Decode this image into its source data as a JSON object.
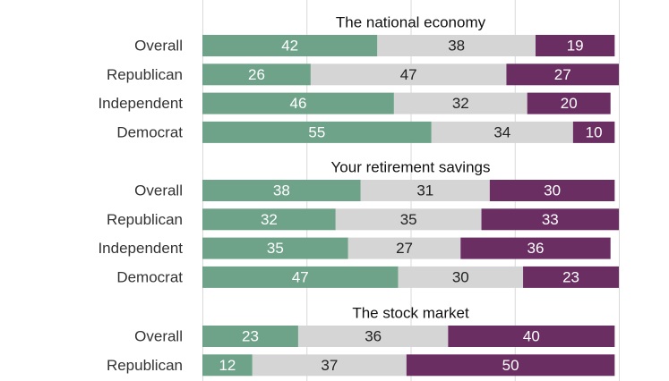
{
  "chart_data": {
    "type": "bar",
    "orientation": "horizontal",
    "stacked": true,
    "xlim": [
      0,
      100
    ],
    "grid": true,
    "colors": {
      "s1": "#6fa389",
      "s2": "#d5d5d5",
      "s3": "#6a2e63",
      "grid": "#d9d9d9",
      "text": "#333333"
    },
    "groups": [
      {
        "title": "The national economy",
        "categories": [
          "Overall",
          "Republican",
          "Independent",
          "Democrat"
        ],
        "series": [
          {
            "values": [
              42,
              26,
              46,
              55
            ]
          },
          {
            "values": [
              38,
              47,
              32,
              34
            ]
          },
          {
            "values": [
              19,
              27,
              20,
              10
            ]
          }
        ]
      },
      {
        "title": "Your retirement savings",
        "categories": [
          "Overall",
          "Republican",
          "Independent",
          "Democrat"
        ],
        "series": [
          {
            "values": [
              38,
              32,
              35,
              47
            ]
          },
          {
            "values": [
              31,
              35,
              27,
              30
            ]
          },
          {
            "values": [
              30,
              33,
              36,
              23
            ]
          }
        ]
      },
      {
        "title": "The stock market",
        "categories": [
          "Overall",
          "Republican"
        ],
        "series": [
          {
            "values": [
              23,
              12
            ]
          },
          {
            "values": [
              36,
              37
            ]
          },
          {
            "values": [
              40,
              50
            ]
          }
        ]
      }
    ]
  }
}
